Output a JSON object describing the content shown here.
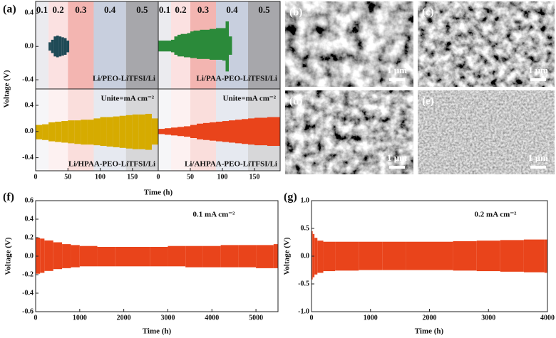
{
  "chart_data": [
    {
      "type": "area",
      "label": "(a)",
      "y_label": "Voltage (V)",
      "x_label": "Time (h)",
      "unit_note": "Unite=mA cm⁻²",
      "xlim": [
        0,
        190
      ],
      "xticks": [
        0,
        50,
        100,
        150
      ],
      "regions": [
        {
          "label": "0.1",
          "start": 0,
          "end": 20,
          "color": "#ebebef"
        },
        {
          "label": "0.2",
          "start": 20,
          "end": 50,
          "color": "#fbe1e1"
        },
        {
          "label": "0.3",
          "start": 50,
          "end": 90,
          "color": "#f3b5b1"
        },
        {
          "label": "0.4",
          "start": 90,
          "end": 140,
          "color": "#c8cfde"
        },
        {
          "label": "0.5",
          "start": 140,
          "end": 190,
          "color": "#a7a7ab"
        }
      ],
      "panels": [
        {
          "name": "Li/PEO-LiTFSI/Li",
          "color": "#1e4a56",
          "ylim": [
            -0.51,
            0.54
          ],
          "yticks": [
            -0.4,
            {
              "value": 0,
              "label": "0.0"
            },
            0.4
          ],
          "x": [
            20,
            24,
            28,
            32,
            36,
            40,
            44,
            48
          ],
          "upper": [
            0.05,
            0.08,
            0.12,
            0.13,
            0.12,
            0.11,
            0.1,
            0.07
          ],
          "lower": [
            -0.05,
            -0.08,
            -0.12,
            -0.13,
            -0.12,
            -0.11,
            -0.1,
            -0.07
          ]
        },
        {
          "name": "Li/PAA-PEO-LiTFSI/Li",
          "color": "#2b8a3a",
          "ylim": [
            -0.51,
            0.54
          ],
          "x": [
            0,
            5,
            10,
            15,
            20,
            25,
            30,
            35,
            40,
            45,
            50,
            55,
            60,
            65,
            70,
            75,
            80,
            85,
            90,
            95,
            100,
            105,
            110
          ],
          "upper": [
            0.07,
            0.07,
            0.07,
            0.07,
            0.08,
            0.12,
            0.14,
            0.15,
            0.15,
            0.16,
            0.18,
            0.19,
            0.19,
            0.2,
            0.2,
            0.2,
            0.21,
            0.21,
            0.22,
            0.22,
            0.22,
            0.3,
            0.12
          ],
          "lower": [
            -0.06,
            -0.06,
            -0.06,
            -0.06,
            -0.07,
            -0.1,
            -0.12,
            -0.12,
            -0.13,
            -0.13,
            -0.14,
            -0.14,
            -0.15,
            -0.15,
            -0.15,
            -0.15,
            -0.16,
            -0.16,
            -0.16,
            -0.16,
            -0.17,
            -0.3,
            -0.1
          ]
        },
        {
          "name": "Li/HPAA-PEO-LiTFSI/Li",
          "color": "#d6ab00",
          "ylim": [
            -0.6,
            0.65
          ],
          "yticks": [
            -0.4,
            {
              "value": 0,
              "label": "0.0"
            },
            0.4
          ],
          "x": [
            0,
            10,
            20,
            30,
            40,
            50,
            60,
            70,
            80,
            90,
            100,
            110,
            120,
            130,
            140,
            150,
            160,
            170,
            180
          ],
          "upper": [
            0.1,
            0.11,
            0.14,
            0.15,
            0.16,
            0.17,
            0.17,
            0.18,
            0.18,
            0.2,
            0.22,
            0.22,
            0.23,
            0.24,
            0.25,
            0.26,
            0.26,
            0.27,
            0.2
          ],
          "lower": [
            -0.12,
            -0.13,
            -0.15,
            -0.16,
            -0.17,
            -0.18,
            -0.19,
            -0.2,
            -0.2,
            -0.21,
            -0.22,
            -0.23,
            -0.24,
            -0.25,
            -0.26,
            -0.27,
            -0.27,
            -0.28,
            -0.2
          ]
        },
        {
          "name": "Li/AHPAA-PEO-LiTFSI/Li",
          "color": "#e9441b",
          "ylim": [
            -0.6,
            0.65
          ],
          "x": [
            0,
            10,
            20,
            30,
            40,
            50,
            60,
            70,
            80,
            90,
            100,
            110,
            120,
            130,
            140,
            150,
            160,
            170,
            180,
            190
          ],
          "upper": [
            0.04,
            0.05,
            0.06,
            0.07,
            0.08,
            0.1,
            0.12,
            0.13,
            0.14,
            0.15,
            0.16,
            0.17,
            0.18,
            0.19,
            0.2,
            0.21,
            0.21,
            0.22,
            0.22,
            0.22
          ],
          "lower": [
            -0.04,
            -0.05,
            -0.06,
            -0.07,
            -0.08,
            -0.1,
            -0.12,
            -0.13,
            -0.14,
            -0.15,
            -0.16,
            -0.17,
            -0.18,
            -0.19,
            -0.2,
            -0.21,
            -0.21,
            -0.22,
            -0.22,
            -0.22
          ]
        }
      ]
    },
    {
      "type": "area",
      "label": "(f)",
      "y_label": "Voltage (V)",
      "x_label": "Time (h)",
      "annotation": "0.1 mA cm⁻²",
      "xlim": [
        0,
        5500
      ],
      "xticks": [
        0,
        1000,
        2000,
        3000,
        4000,
        5000
      ],
      "panels": [
        {
          "color": "#e9441b",
          "ylim": [
            -0.6,
            0.6
          ],
          "yticks": [
            -0.6,
            -0.4,
            -0.2,
            {
              "value": 0,
              "label": "0.0"
            },
            0.2,
            0.4,
            0.6
          ],
          "x": [
            0,
            100,
            200,
            400,
            600,
            800,
            1000,
            1400,
            1800,
            2200,
            2600,
            3000,
            3400,
            3800,
            4200,
            4600,
            5000,
            5400
          ],
          "upper": [
            0.2,
            0.19,
            0.17,
            0.15,
            0.13,
            0.12,
            0.11,
            0.1,
            0.1,
            0.1,
            0.1,
            0.11,
            0.11,
            0.11,
            0.12,
            0.12,
            0.12,
            0.13
          ],
          "lower": [
            -0.19,
            -0.18,
            -0.16,
            -0.14,
            -0.13,
            -0.12,
            -0.11,
            -0.11,
            -0.11,
            -0.11,
            -0.11,
            -0.11,
            -0.12,
            -0.12,
            -0.12,
            -0.12,
            -0.13,
            -0.13
          ]
        }
      ]
    },
    {
      "type": "area",
      "label": "(g)",
      "y_label": "Voltage (V)",
      "x_label": "Time (h)",
      "annotation": "0.2 mA cm⁻²",
      "xlim": [
        0,
        4000
      ],
      "xticks": [
        0,
        1000,
        2000,
        3000,
        4000
      ],
      "panels": [
        {
          "color": "#e9441b",
          "ylim": [
            -1,
            1
          ],
          "yticks": [
            {
              "value": -1,
              "label": "-1.0"
            },
            -0.5,
            {
              "value": 0,
              "label": "0.0"
            },
            0.5,
            {
              "value": 1,
              "label": "1.0"
            }
          ],
          "x": [
            0,
            20,
            50,
            100,
            200,
            400,
            800,
            1200,
            1600,
            2000,
            2400,
            2800,
            3200,
            3600,
            3950
          ],
          "upper": [
            0.45,
            0.4,
            0.33,
            0.28,
            0.26,
            0.26,
            0.26,
            0.26,
            0.26,
            0.26,
            0.27,
            0.28,
            0.29,
            0.3,
            0.3
          ],
          "lower": [
            -0.42,
            -0.38,
            -0.33,
            -0.3,
            -0.27,
            -0.26,
            -0.25,
            -0.25,
            -0.25,
            -0.25,
            -0.26,
            -0.27,
            -0.28,
            -0.29,
            -0.3
          ]
        }
      ]
    }
  ],
  "images": [
    {
      "label": "(b)",
      "scale": "1 μm"
    },
    {
      "label": "(c)",
      "scale": "1 μm"
    },
    {
      "label": "(d)",
      "scale": "1 μm"
    },
    {
      "label": "(e)",
      "scale": "1 μm"
    }
  ]
}
